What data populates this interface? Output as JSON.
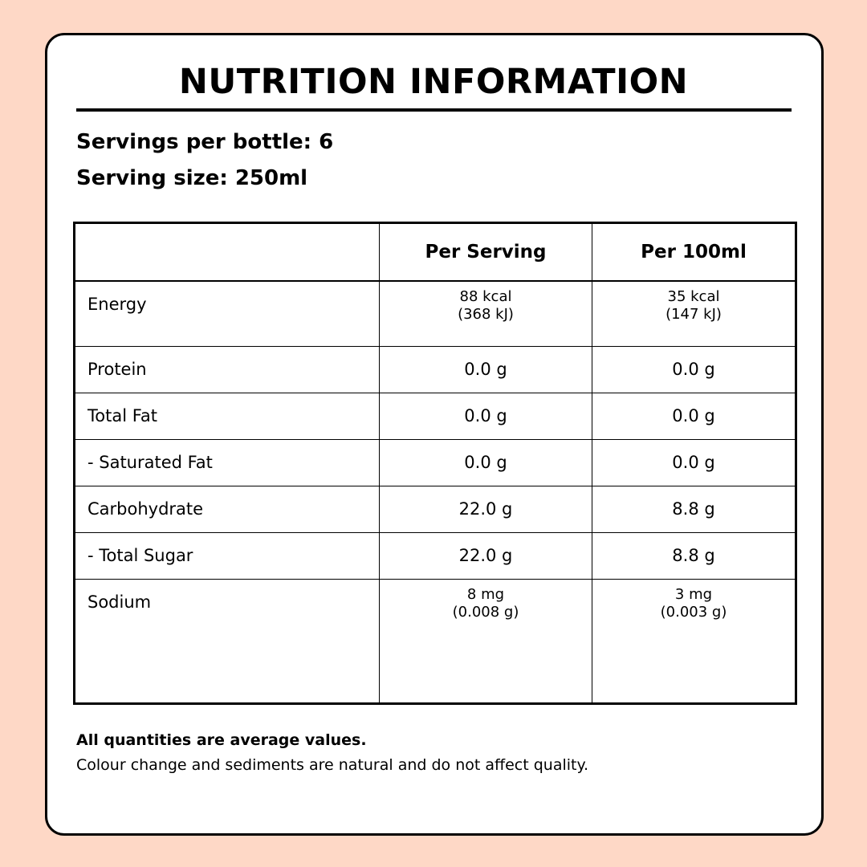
{
  "header": {
    "title": "NUTRITION INFORMATION",
    "servings_per_bottle": "Servings per bottle: 6",
    "serving_size": "Serving size: 250ml"
  },
  "table": {
    "columns": [
      "Per Serving",
      "Per 100ml"
    ],
    "rows": [
      [
        "Energy",
        [
          "88 kcal",
          "(368 kJ)"
        ],
        [
          "35 kcal",
          "(147 kJ)"
        ]
      ],
      [
        "Protein",
        "0.0 g",
        "0.0 g"
      ],
      [
        "Total Fat",
        "0.0 g",
        "0.0 g"
      ],
      [
        "- Saturated Fat",
        "0.0 g",
        "0.0 g"
      ],
      [
        "Carbohydrate",
        "22.0 g",
        "8.8 g"
      ],
      [
        "- Total Sugar",
        "22.0 g",
        "8.8 g"
      ],
      [
        "Sodium",
        [
          "8 mg",
          "(0.008 g)"
        ],
        [
          "3 mg",
          "(0.003 g)"
        ]
      ]
    ]
  },
  "footer": {
    "note": "All quantities are average values.",
    "disclaimer": "Colour change and sediments are natural and do not affect quality."
  }
}
